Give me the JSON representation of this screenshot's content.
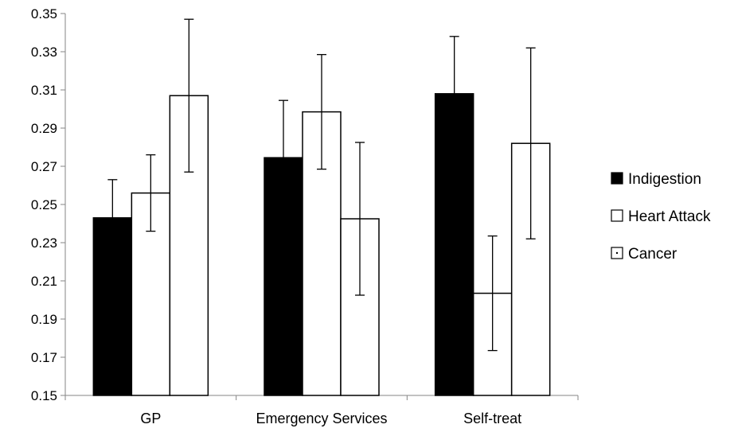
{
  "chart_data": {
    "type": "bar",
    "title": "",
    "xlabel": "",
    "ylabel": "",
    "categories": [
      "GP",
      "Emergency Services",
      "Self-treat"
    ],
    "series": [
      {
        "name": "Indigestion",
        "fill": "#000000",
        "values": [
          0.243,
          0.2745,
          0.308
        ],
        "error": [
          0.02,
          0.03,
          0.03
        ]
      },
      {
        "name": "Heart Attack",
        "fill": "#ffffff",
        "values": [
          0.256,
          0.2985,
          0.2035
        ],
        "error": [
          0.02,
          0.03,
          0.03
        ]
      },
      {
        "name": "Cancer",
        "fill": "#ffffff",
        "values": [
          0.307,
          0.2425,
          0.282
        ],
        "error": [
          0.04,
          0.04,
          0.05
        ]
      }
    ],
    "ylim": [
      0.15,
      0.35
    ],
    "yticks": [
      "0.15",
      "0.17",
      "0.19",
      "0.21",
      "0.23",
      "0.25",
      "0.27",
      "0.29",
      "0.31",
      "0.33",
      "0.35"
    ],
    "grid": false,
    "legend_position": "right"
  }
}
